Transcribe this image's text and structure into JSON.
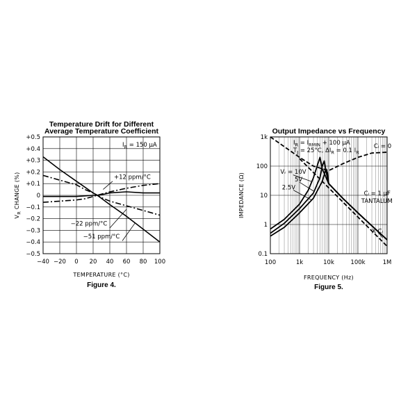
{
  "chart_data": [
    {
      "type": "line",
      "title": "Temperature Drift for Different Average Temperature Coefficient",
      "title_lines": [
        "Temperature Drift for Different",
        "Average Temperature Coefficient"
      ],
      "caption": "Figure 4.",
      "xlabel": "TEMPERATURE (°C)",
      "ylabel": "V",
      "ylabel_sub": "R",
      "ylabel_rest": " CHANGE (%)",
      "xlim": [
        -40,
        100
      ],
      "ylim": [
        -0.5,
        0.5
      ],
      "xticks": [
        -40,
        -20,
        0,
        20,
        40,
        60,
        80,
        100
      ],
      "xtick_labels": [
        "−40",
        "−20",
        "0",
        "20",
        "40",
        "60",
        "80",
        "100"
      ],
      "yticks": [
        0.5,
        0.4,
        0.3,
        0.2,
        0.1,
        0,
        -0.1,
        -0.2,
        -0.3,
        -0.4,
        -0.5
      ],
      "ytick_labels": [
        "+0.5",
        "+0.4",
        "+0.3",
        "+0.2",
        "+0.1",
        "0",
        "−0.1",
        "−0.2",
        "−0.3",
        "−0.4",
        "−0.5"
      ],
      "grid": true,
      "annotation": {
        "main": "I",
        "sub": "R",
        "rest": " = 150 μA"
      },
      "series": [
        {
          "name": "+12 ppm/°C",
          "style": "dash-dot",
          "x": [
            -40,
            -20,
            0,
            10,
            20,
            25,
            30,
            40,
            60,
            80,
            100
          ],
          "y": [
            -0.06,
            -0.05,
            -0.04,
            -0.03,
            -0.01,
            0.0,
            0.01,
            0.03,
            0.06,
            0.085,
            0.1
          ]
        },
        {
          "name": "",
          "style": "solid",
          "x": [
            -40,
            -20,
            0,
            20,
            25,
            30,
            40,
            60,
            80,
            100
          ],
          "y": [
            -0.01,
            -0.01,
            -0.01,
            0.0,
            0.0,
            0.005,
            0.02,
            0.03,
            0.02,
            0.02
          ]
        },
        {
          "name": "",
          "style": "dash-dot",
          "x": [
            -40,
            -20,
            0,
            10,
            20,
            25,
            30,
            40,
            60,
            80,
            100
          ],
          "y": [
            0.17,
            0.13,
            0.09,
            0.05,
            0.02,
            0.0,
            -0.02,
            -0.05,
            -0.09,
            -0.13,
            -0.17
          ]
        },
        {
          "name": "",
          "style": "solid",
          "x": [
            -40,
            -20,
            0,
            20,
            25,
            40,
            60,
            80,
            100
          ],
          "y": [
            0.33,
            0.22,
            0.12,
            0.02,
            0.0,
            -0.08,
            -0.18,
            -0.29,
            -0.4
          ]
        }
      ],
      "labels": [
        {
          "text": "+12 ppm/°C",
          "x": 45,
          "y": 0.14
        },
        {
          "text": "−22 ppm/°C",
          "x": -7,
          "y": -0.26
        },
        {
          "text": "−51 ppm/°C",
          "x": 8,
          "y": -0.37
        }
      ]
    },
    {
      "type": "line",
      "title": "Output Impedance vs Frequency",
      "caption": "Figure 5.",
      "xlabel": "FREQUENCY (Hz)",
      "ylabel": "IMPEDANCE (Ω)",
      "xscale": "log",
      "yscale": "log",
      "xlim": [
        100,
        1000000
      ],
      "ylim": [
        0.1,
        1000
      ],
      "xticks": [
        100,
        1000,
        10000,
        100000,
        1000000
      ],
      "xtick_labels": [
        "100",
        "1k",
        "10k",
        "100k",
        "1M"
      ],
      "yticks": [
        1000,
        100,
        10,
        1,
        0.1
      ],
      "ytick_labels": [
        "1k",
        "100",
        "10",
        "1",
        "0.1"
      ],
      "grid": true,
      "annotations": [
        {
          "main": "I",
          "sub": "R",
          "rest": " = I",
          "sub2": "RMIN",
          "rest2": " + 100 μA"
        },
        {
          "main": "T",
          "sub": "J",
          "rest": " = 25°C, ΔI",
          "sub2": "R",
          "rest2": " = 0.1 I",
          "sub3": "R"
        }
      ],
      "series": [
        {
          "name": "Cₗ = 0",
          "style": "dashed",
          "x": [
            100,
            1000,
            3000,
            10000,
            30000,
            100000,
            300000,
            1000000
          ],
          "y": [
            1000,
            200,
            100,
            70,
            120,
            200,
            280,
            300
          ]
        },
        {
          "name": "X Cₗ",
          "style": "dashed",
          "x": [
            1000,
            3000,
            10000,
            30000,
            100000,
            300000,
            1000000
          ],
          "y": [
            180,
            60,
            18,
            6,
            1.8,
            0.6,
            0.18
          ]
        },
        {
          "name": "10V",
          "style": "solid",
          "x": [
            100,
            300,
            1000,
            2000,
            3000,
            4000,
            5000,
            6000,
            10000,
            30000,
            100000,
            300000,
            1000000
          ],
          "y": [
            0.7,
            1.5,
            5,
            15,
            40,
            100,
            200,
            80,
            25,
            8,
            2.5,
            0.9,
            0.3
          ]
        },
        {
          "name": "5V",
          "style": "solid",
          "x": [
            100,
            300,
            1000,
            3000,
            5000,
            6000,
            7000,
            8000,
            10000,
            30000,
            100000,
            300000,
            1000000
          ],
          "y": [
            0.5,
            1.1,
            3.5,
            12,
            40,
            100,
            150,
            70,
            25,
            8,
            2.5,
            0.9,
            0.3
          ]
        },
        {
          "name": "2.5V",
          "style": "solid",
          "x": [
            100,
            300,
            1000,
            3000,
            6000,
            8000,
            9000,
            10000,
            30000,
            100000,
            300000,
            1000000
          ],
          "y": [
            0.4,
            0.8,
            2.5,
            8,
            30,
            80,
            60,
            25,
            8,
            2.5,
            0.9,
            0.3
          ]
        }
      ],
      "labels": [
        {
          "text": "Cₗ = 0",
          "x": 350000,
          "y": 420
        },
        {
          "text": "Vᵣ = 10V",
          "x": 220,
          "y": 55
        },
        {
          "text": "5V",
          "x": 680,
          "y": 30
        },
        {
          "text": "2.5V",
          "x": 250,
          "y": 16
        },
        {
          "text": "Cₗ = 1 μF",
          "x": 160000,
          "y": 10
        },
        {
          "text": "TANTALUM",
          "x": 130000,
          "y": 5.5
        },
        {
          "text": "X Cₗ",
          "x": 300000,
          "y": 0.5
        }
      ]
    }
  ]
}
